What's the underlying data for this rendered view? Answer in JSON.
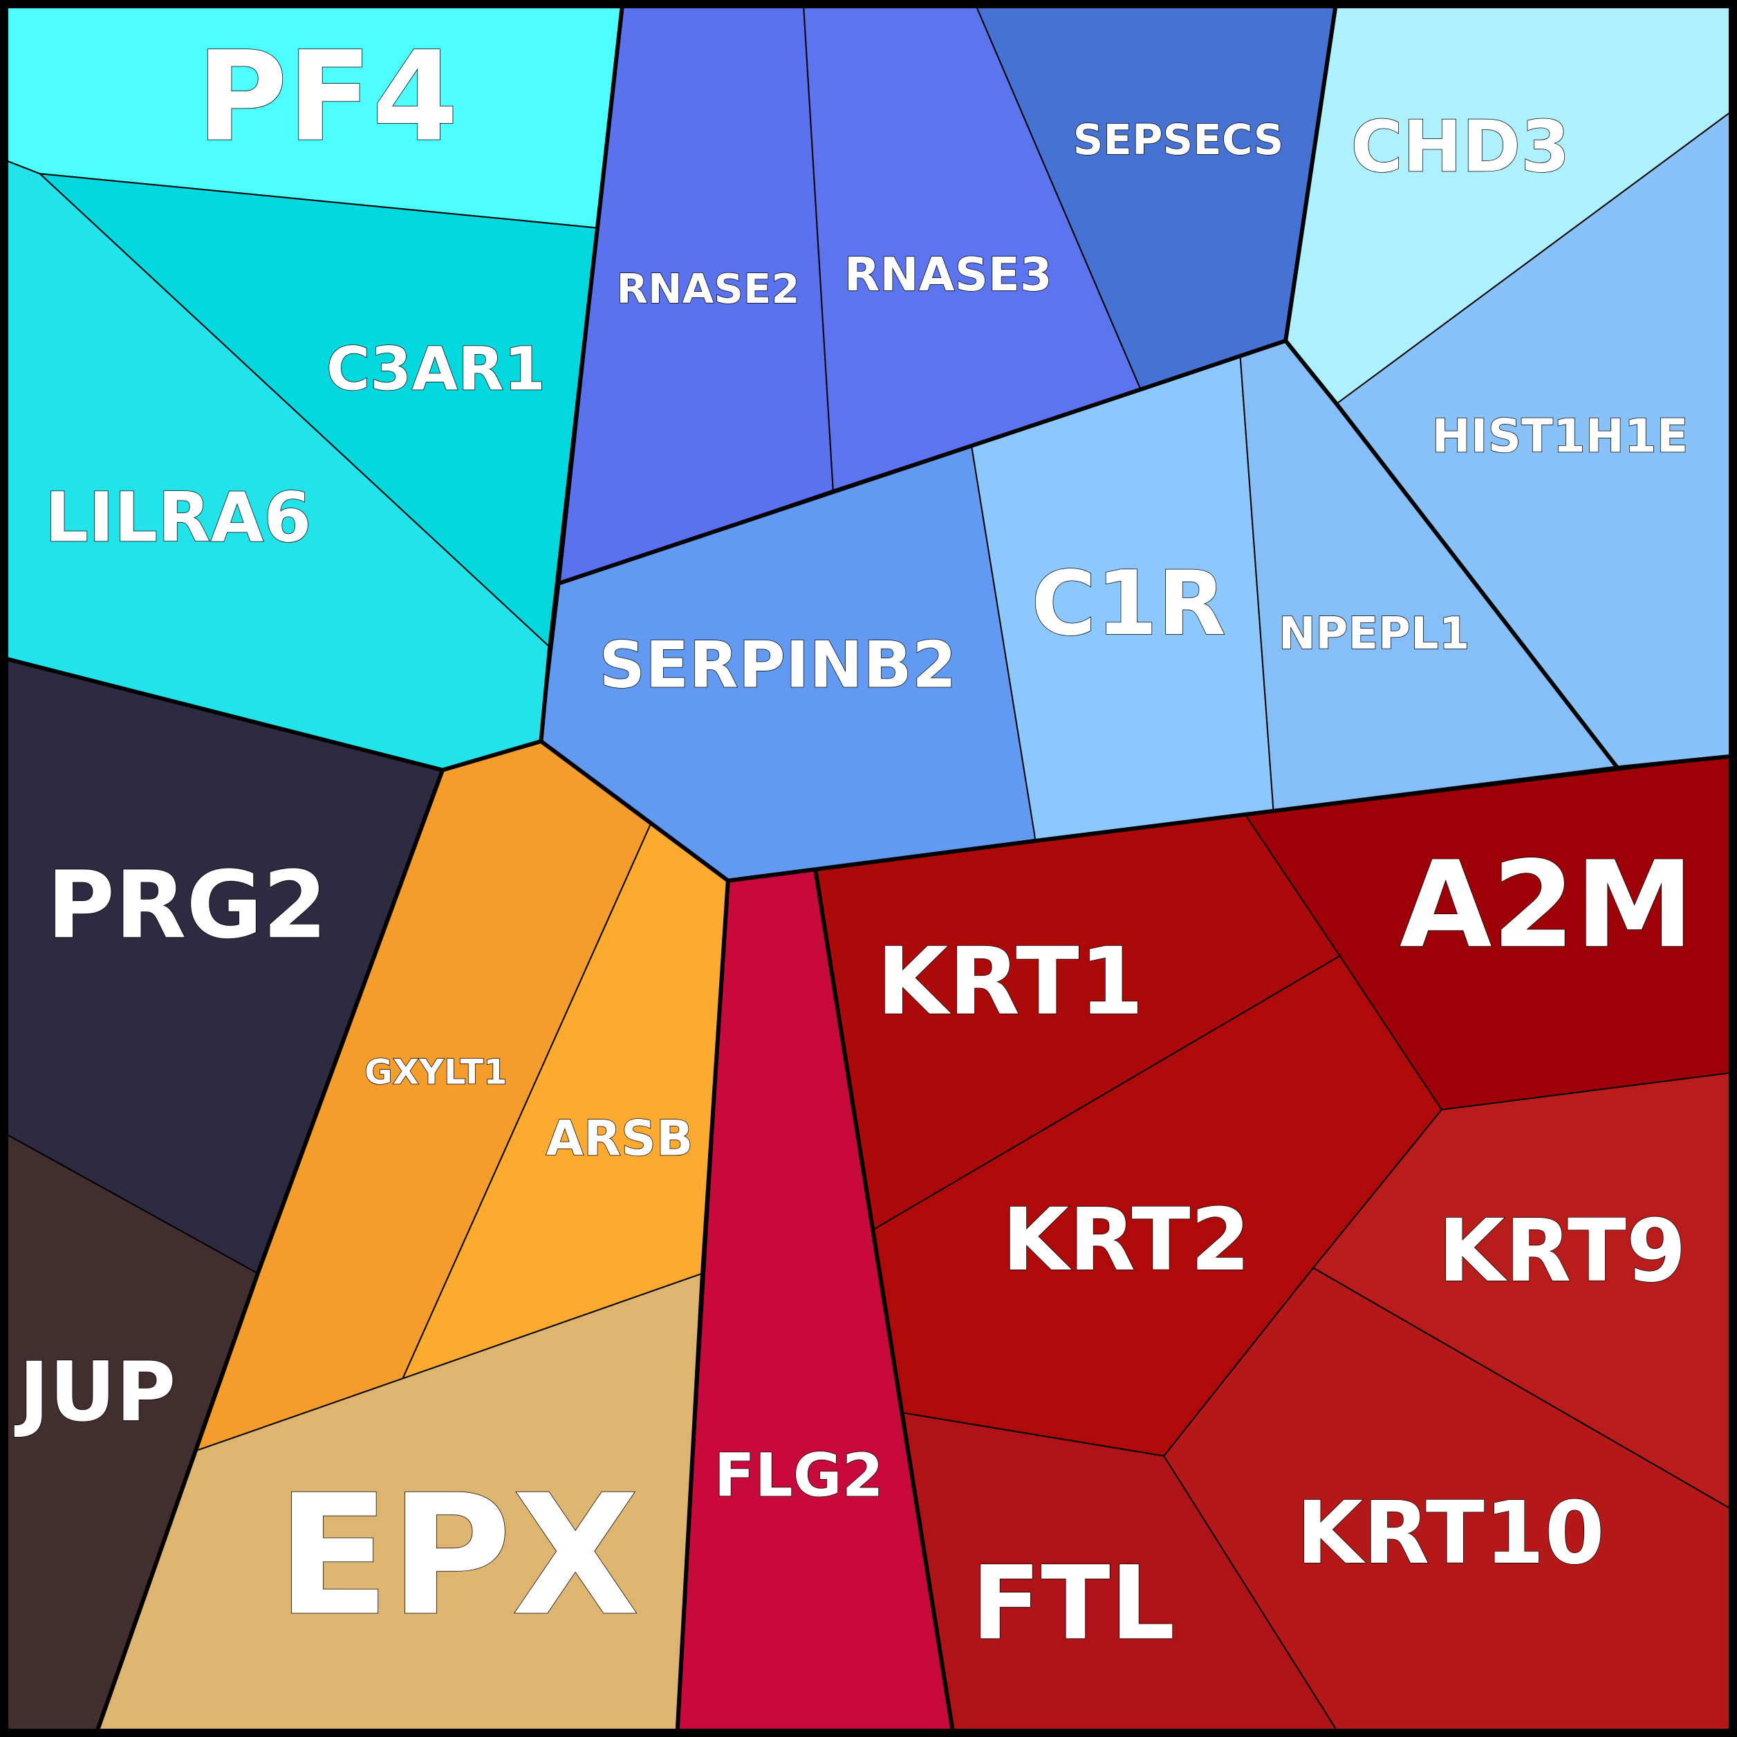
{
  "groups": [
    {
      "color": "#22e2ea",
      "cells": [
        {
          "label": "PF4",
          "color": "#4cfefe"
        },
        {
          "label": "C3AR1",
          "color": "#03d8de"
        },
        {
          "label": "LILRA6",
          "color": "#22e2ea"
        }
      ]
    },
    {
      "color": "#5c74ee",
      "cells": [
        {
          "label": "RNASE2",
          "color": "#5a72ee"
        },
        {
          "label": "RNASE3",
          "color": "#5c74ee"
        },
        {
          "label": "SEPSECS",
          "color": "#4672d4"
        },
        {
          "label": "CHD3",
          "color": "#aef0fe"
        },
        {
          "label": "HIST1H1E",
          "color": "#88c2f8"
        },
        {
          "label": "SERPINB2",
          "color": "#629af2"
        },
        {
          "label": "C1R",
          "color": "#8cc8fe"
        },
        {
          "label": "NPEPL1",
          "color": "#86bef8"
        }
      ]
    },
    {
      "color": "#2e2a42",
      "cells": [
        {
          "label": "PRG2",
          "color": "#2e2a42"
        }
      ]
    },
    {
      "color": "#f59d2c",
      "cells": [
        {
          "label": "GXYLT1",
          "color": "#f59d2c"
        },
        {
          "label": "ARSB",
          "color": "#fcab30"
        },
        {
          "label": "EPX",
          "color": "#ddb570"
        }
      ]
    },
    {
      "color": "#422e2e",
      "cells": [
        {
          "label": "JUP",
          "color": "#422e2e"
        }
      ]
    },
    {
      "color": "#ae0a0a",
      "cells": [
        {
          "label": "FLG2",
          "color": "#c8093b"
        },
        {
          "label": "KRT1",
          "color": "#ac0a0a"
        },
        {
          "label": "A2M",
          "color": "#9e0008"
        },
        {
          "label": "KRT2",
          "color": "#ae0a0a"
        },
        {
          "label": "KRT9",
          "color": "#b81d1c"
        },
        {
          "label": "KRT10",
          "color": "#b41819"
        },
        {
          "label": "FTL",
          "color": "#ae1417"
        }
      ]
    }
  ]
}
